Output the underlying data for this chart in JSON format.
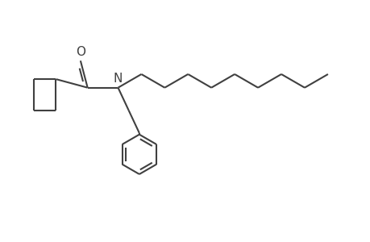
{
  "background_color": "#ffffff",
  "line_color": "#404040",
  "line_width": 1.5,
  "figsize": [
    4.6,
    3.0
  ],
  "dpi": 100,
  "O_label": "O",
  "N_label": "N",
  "label_fontsize": 11
}
